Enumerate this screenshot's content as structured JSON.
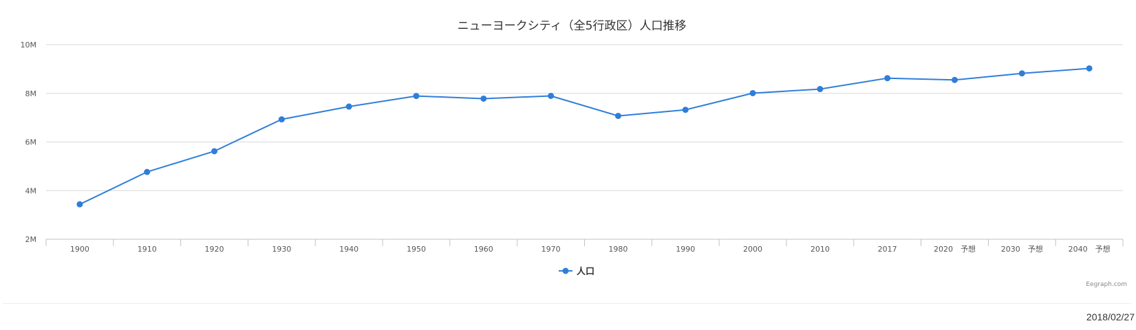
{
  "chart_data": {
    "type": "line",
    "title": "ニューヨークシティ（全5行政区）人口推移",
    "categories": [
      "1900",
      "1910",
      "1920",
      "1930",
      "1940",
      "1950",
      "1960",
      "1970",
      "1980",
      "1990",
      "2000",
      "2010",
      "2017",
      "2020　予想",
      "2030　予想",
      "2040　予想"
    ],
    "series": [
      {
        "name": "人口",
        "values": [
          3437202,
          4766883,
          5620048,
          6930446,
          7454995,
          7891957,
          7781984,
          7894862,
          7071639,
          7322564,
          8008278,
          8175133,
          8622698,
          8550000,
          8821000,
          9025000
        ]
      }
    ],
    "yticks": [
      "2M",
      "4M",
      "6M",
      "8M",
      "10M"
    ],
    "ylim": [
      2000000,
      10000000
    ],
    "grid": true,
    "legend_position": "bottom-center",
    "line_color": "#2f7ed8"
  },
  "credit": "Eegraph.com",
  "footer": {
    "date": "2018/02/27"
  }
}
